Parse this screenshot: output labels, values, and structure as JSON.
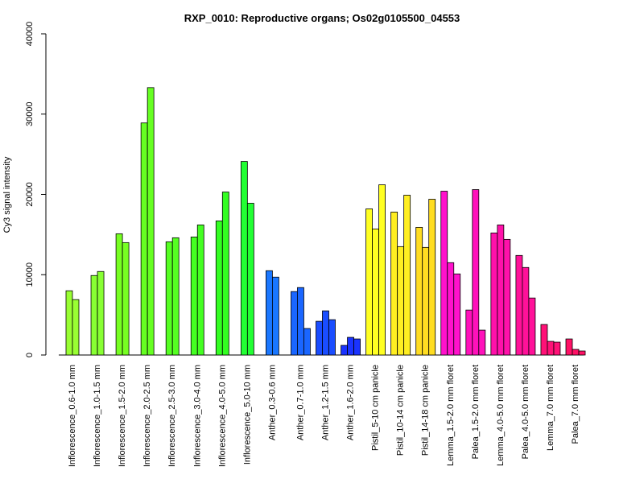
{
  "chart_data": {
    "type": "bar",
    "title": "RXP_0010: Reproductive organs; Os02g0105500_04553",
    "xlabel": "",
    "ylabel": "Cy3 signal intensity",
    "ylim": [
      0,
      40000
    ],
    "yticks": [
      0,
      10000,
      20000,
      30000,
      40000
    ],
    "yticks_labels": [
      "0",
      "10000",
      "20000",
      "30000",
      "40000"
    ],
    "grid": false,
    "legend": "none",
    "groups": [
      {
        "label": "Inflorescence_0.6-1.0 mm",
        "color": "#99ff33",
        "values": [
          8000,
          6900
        ]
      },
      {
        "label": "Inflorescence_1.0-1.5 mm",
        "color": "#88ff33",
        "values": [
          9900,
          10400
        ]
      },
      {
        "label": "Inflorescence_1.5-2.0 mm",
        "color": "#77ff22",
        "values": [
          15100,
          14000
        ]
      },
      {
        "label": "Inflorescence_2.0-2.5 mm",
        "color": "#66ff22",
        "values": [
          28900,
          33300
        ]
      },
      {
        "label": "Inflorescence_2.5-3.0 mm",
        "color": "#55ff22",
        "values": [
          14100,
          14600
        ]
      },
      {
        "label": "Inflorescence_3.0-4.0 mm",
        "color": "#44ff22",
        "values": [
          14700,
          16200
        ]
      },
      {
        "label": "Inflorescence_4.0-5.0 mm",
        "color": "#33ff22",
        "values": [
          16700,
          20300
        ]
      },
      {
        "label": "Inflorescence_5.0-10 mm",
        "color": "#22ff33",
        "values": [
          24100,
          18900
        ]
      },
      {
        "label": "Anther_0.3-0.6 mm",
        "color": "#1a77ff",
        "values": [
          10500,
          9700
        ]
      },
      {
        "label": "Anther_0.7-1.0 mm",
        "color": "#1a66ff",
        "values": [
          7900,
          8400,
          3300
        ]
      },
      {
        "label": "Anther_1.2-1.5 mm",
        "color": "#1a4dff",
        "values": [
          4200,
          5500,
          4400
        ]
      },
      {
        "label": "Anther_1.6-2.0 mm",
        "color": "#1a33ff",
        "values": [
          1200,
          2200,
          2000
        ]
      },
      {
        "label": "Pistil_5-10 cm panicle",
        "color": "#ffff22",
        "values": [
          18200,
          15700,
          21200
        ]
      },
      {
        "label": "Pistil_10-14 cm panicle",
        "color": "#ffee22",
        "values": [
          17800,
          13500,
          19900
        ]
      },
      {
        "label": "Pistil_14-18 cm panicle",
        "color": "#ffdd22",
        "values": [
          15900,
          13400,
          19400
        ]
      },
      {
        "label": "Lemma_1.5-2.0 mm floret",
        "color": "#ff11cc",
        "values": [
          20400,
          11500,
          10100
        ]
      },
      {
        "label": "Palea_1.5-2.0 mm floret",
        "color": "#ff11bb",
        "values": [
          5600,
          20600,
          3100
        ]
      },
      {
        "label": "Lemma_4.0-5.0 mm floret",
        "color": "#ff11aa",
        "values": [
          15200,
          16200,
          14400
        ]
      },
      {
        "label": "Palea_4.0-5.0 mm floret",
        "color": "#ff1199",
        "values": [
          12400,
          10900,
          7100
        ]
      },
      {
        "label": "Lemma_7.0 mm floret",
        "color": "#ff1177",
        "values": [
          3800,
          1700,
          1600
        ]
      },
      {
        "label": "Palea_7.0 mm floret",
        "color": "#ff1166",
        "values": [
          2000,
          700,
          500
        ]
      }
    ]
  }
}
